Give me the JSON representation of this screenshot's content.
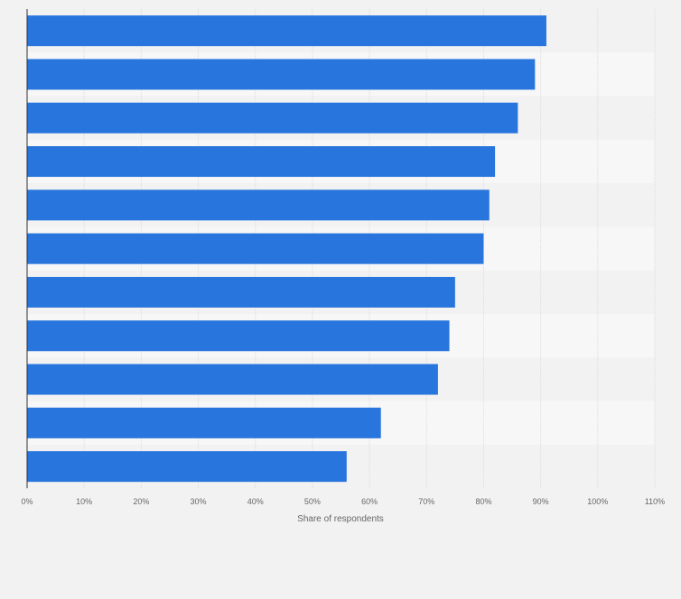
{
  "chart_data": {
    "type": "bar",
    "orientation": "horizontal",
    "categories": [
      "",
      "",
      "",
      "",
      "",
      "",
      "",
      "",
      "",
      "",
      ""
    ],
    "values": [
      91,
      89,
      86,
      82,
      81,
      80,
      75,
      74,
      72,
      62,
      56
    ],
    "xlabel": "Share of respondents",
    "xlim": [
      0,
      110
    ],
    "x_ticks": [
      "0%",
      "10%",
      "20%",
      "30%",
      "40%",
      "50%",
      "60%",
      "70%",
      "80%",
      "90%",
      "100%",
      "110%"
    ],
    "grid": true,
    "bar_color": "#2876dd"
  }
}
